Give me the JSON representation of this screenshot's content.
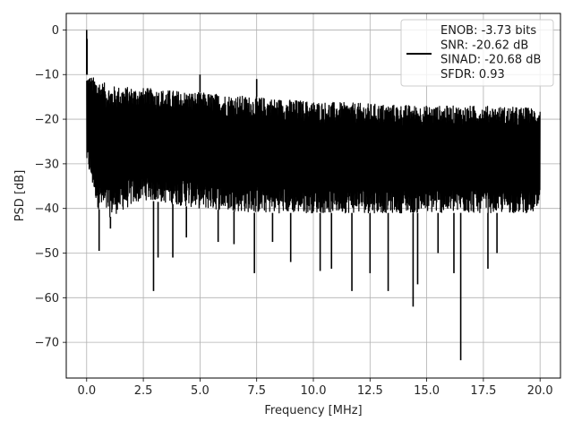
{
  "chart_data": {
    "type": "line",
    "xlabel": "Frequency [MHz]",
    "ylabel": "PSD [dB]",
    "xlim": [
      -0.9,
      20.9
    ],
    "ylim": [
      -78,
      3.7
    ],
    "xticks": [
      0.0,
      2.5,
      5.0,
      7.5,
      10.0,
      12.5,
      15.0,
      17.5,
      20.0
    ],
    "xtick_labels": [
      "0.0",
      "2.5",
      "5.0",
      "7.5",
      "10.0",
      "12.5",
      "15.0",
      "17.5",
      "20.0"
    ],
    "yticks": [
      0,
      -10,
      -20,
      -30,
      -40,
      -50,
      -60,
      -70
    ],
    "ytick_labels": [
      "0",
      "−10",
      "−20",
      "−30",
      "−40",
      "−50",
      "−60",
      "−70"
    ],
    "grid": true,
    "legend_position": "top-right",
    "series": [
      {
        "name": "ENOB: -3.73 bits\nSNR: -20.62 dB\nSINAD: -20.68 dB\nSFDR: 0.93",
        "color": "#000000",
        "envelope_upper": [
          [
            0.0,
            -10
          ],
          [
            0.5,
            -11
          ],
          [
            1.0,
            -12.5
          ],
          [
            2.5,
            -13
          ],
          [
            5.0,
            -14
          ],
          [
            7.5,
            -15
          ],
          [
            10.0,
            -16
          ],
          [
            12.5,
            -16.5
          ],
          [
            15.0,
            -17
          ],
          [
            17.5,
            -17
          ],
          [
            20.0,
            -17.5
          ]
        ],
        "envelope_lower": [
          [
            0.0,
            -30
          ],
          [
            0.5,
            -40
          ],
          [
            1.0,
            -42
          ],
          [
            2.5,
            -38
          ],
          [
            5.0,
            -40
          ],
          [
            7.5,
            -41
          ],
          [
            10.0,
            -41
          ],
          [
            12.5,
            -41
          ],
          [
            15.0,
            -41
          ],
          [
            17.5,
            -41
          ],
          [
            20.0,
            -41
          ]
        ],
        "peaks": [
          [
            0.0,
            0
          ],
          [
            0.02,
            -2
          ],
          [
            5.0,
            -10
          ],
          [
            7.5,
            -11
          ]
        ],
        "dips": [
          [
            0.55,
            -49.5
          ],
          [
            1.05,
            -44.5
          ],
          [
            2.95,
            -58.5
          ],
          [
            3.15,
            -51
          ],
          [
            3.8,
            -51
          ],
          [
            4.4,
            -46.5
          ],
          [
            5.8,
            -47.5
          ],
          [
            6.5,
            -48
          ],
          [
            7.4,
            -54.5
          ],
          [
            8.2,
            -47.5
          ],
          [
            9.0,
            -52
          ],
          [
            10.3,
            -54
          ],
          [
            10.8,
            -53.5
          ],
          [
            11.7,
            -58.5
          ],
          [
            12.5,
            -54.5
          ],
          [
            13.3,
            -58.5
          ],
          [
            14.4,
            -62
          ],
          [
            14.6,
            -57
          ],
          [
            15.5,
            -50
          ],
          [
            16.2,
            -54.5
          ],
          [
            16.5,
            -74
          ],
          [
            17.7,
            -53.5
          ],
          [
            18.1,
            -50
          ]
        ]
      }
    ]
  }
}
